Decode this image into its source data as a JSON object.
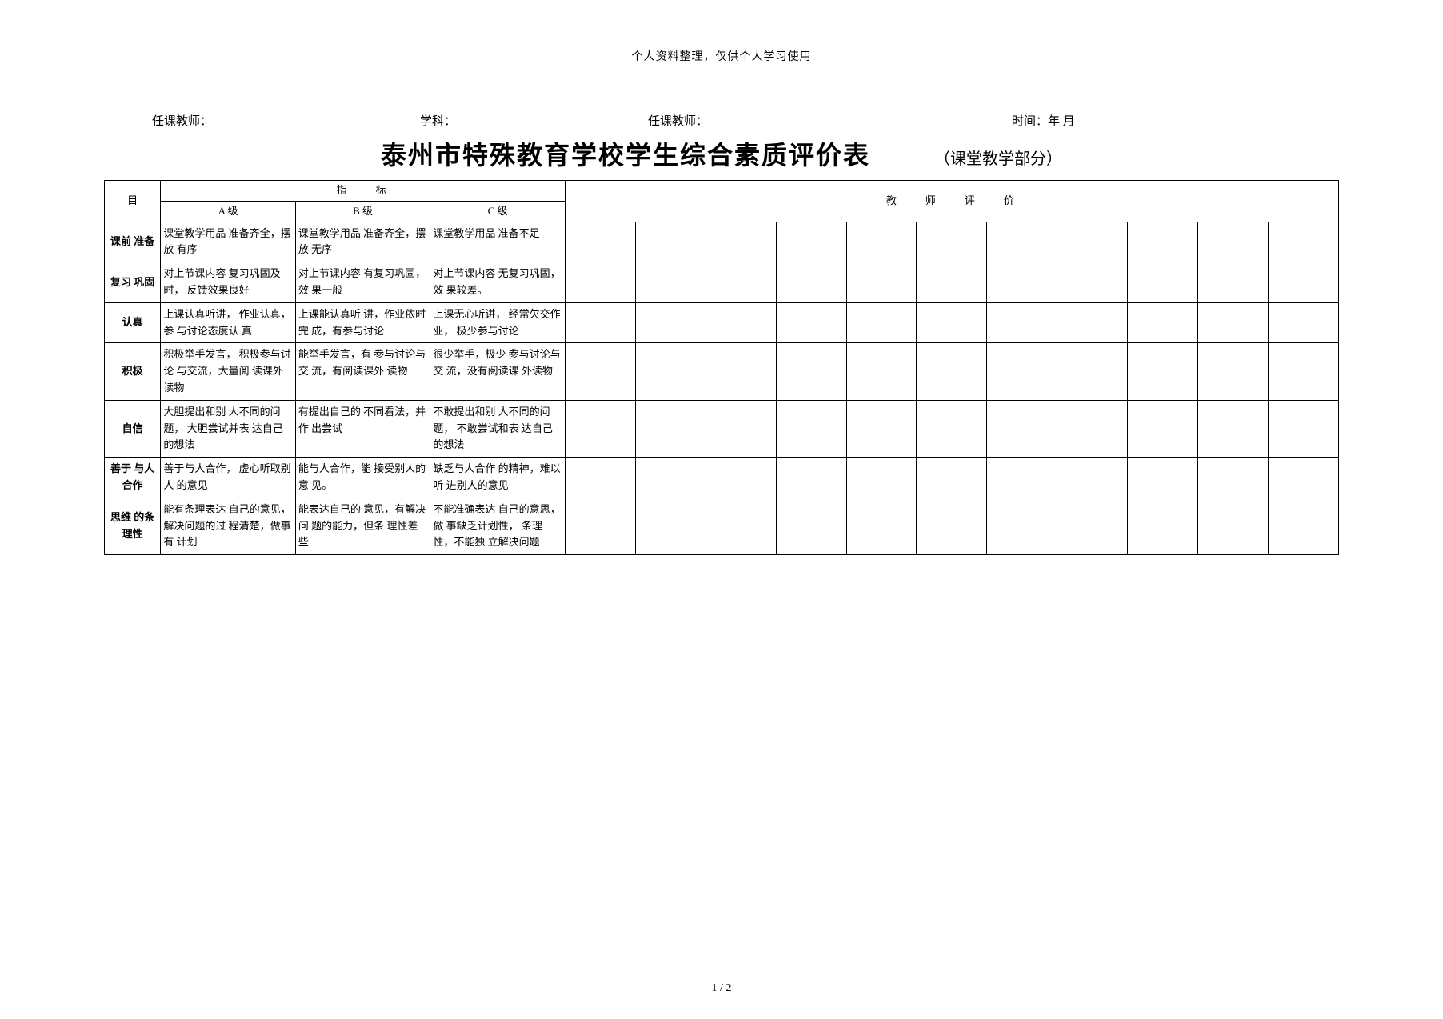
{
  "header_note_prefix": "个人",
  "header_note_mid1": "资料整理，仅",
  "header_note_mid2": "供个人学习",
  "header_note_suffix": "使用",
  "meta": {
    "teacher_label1": "任课教师：",
    "subject_label": "学科：",
    "teacher_label2": "任课教师：",
    "time_label": "时间：年 月"
  },
  "title": "泰州市特殊教育学校学生综合素质评价表",
  "subtitle": "（课堂教学部分）",
  "headers": {
    "project": "目",
    "indicator": "指标",
    "level_a": "A 级",
    "level_b": "B 级",
    "level_c": "C 级",
    "teacher_eval": "教师评价"
  },
  "rows": [
    {
      "project": "课前 准备",
      "a": "课堂教学用品 准备齐全，摆放 有序",
      "b": "课堂教学用品 准备齐全，摆放 无序",
      "c": "课堂教学用品 准备不足"
    },
    {
      "project": "复习 巩固",
      "a": "对上节课内容 复习巩固及时， 反馈效果良好",
      "b": "对上节课内容 有复习巩固，效 果一般",
      "c": "对上节课内容 无复习巩固，效 果较差。"
    },
    {
      "project": "认真",
      "a": "上课认真听讲， 作业认真，参 与讨论态度认 真",
      "b": "上课能认真听 讲，作业依时完 成，有参与讨论",
      "c": "上课无心听讲， 经常欠交作业， 极少参与讨论"
    },
    {
      "project": "积极",
      "a": "积极举手发言， 积极参与讨论 与交流，大量阅 读课外读物",
      "b": "能举手发言，有 参与讨论与交 流，有阅读课外 读物",
      "c": "很少举手，极少 参与讨论与交 流，没有阅读课 外读物"
    },
    {
      "project": "自信",
      "a": "大胆提出和别 人不同的问题， 大胆尝试并表 达自己的想法",
      "b": "有提出自己的 不同看法，并作 出尝试",
      "c": "不敢提出和别 人不同的问题， 不敢尝试和表 达自己的想法"
    },
    {
      "project": "善于 与人 合作",
      "a": "善于与人合作， 虚心听取别人 的意见",
      "b": "能与人合作，能 接受别人的意 见。",
      "c": "缺乏与人合作 的精神，难以听 进别人的意见"
    },
    {
      "project": "思维 的条 理性",
      "a": "能有条理表达 自己的意见， 解决问题的过 程清楚，做事有 计划",
      "b": "能表达自己的 意见，有解决问 题的能力，但条 理性差些",
      "c": "不能准确表达 自己的意思，做 事缺乏计划性， 条理性，不能独 立解决问题"
    }
  ],
  "page_number": "1 / 2",
  "eval_columns": 11,
  "colors": {
    "text": "#000000",
    "background": "#ffffff",
    "border": "#000000"
  }
}
